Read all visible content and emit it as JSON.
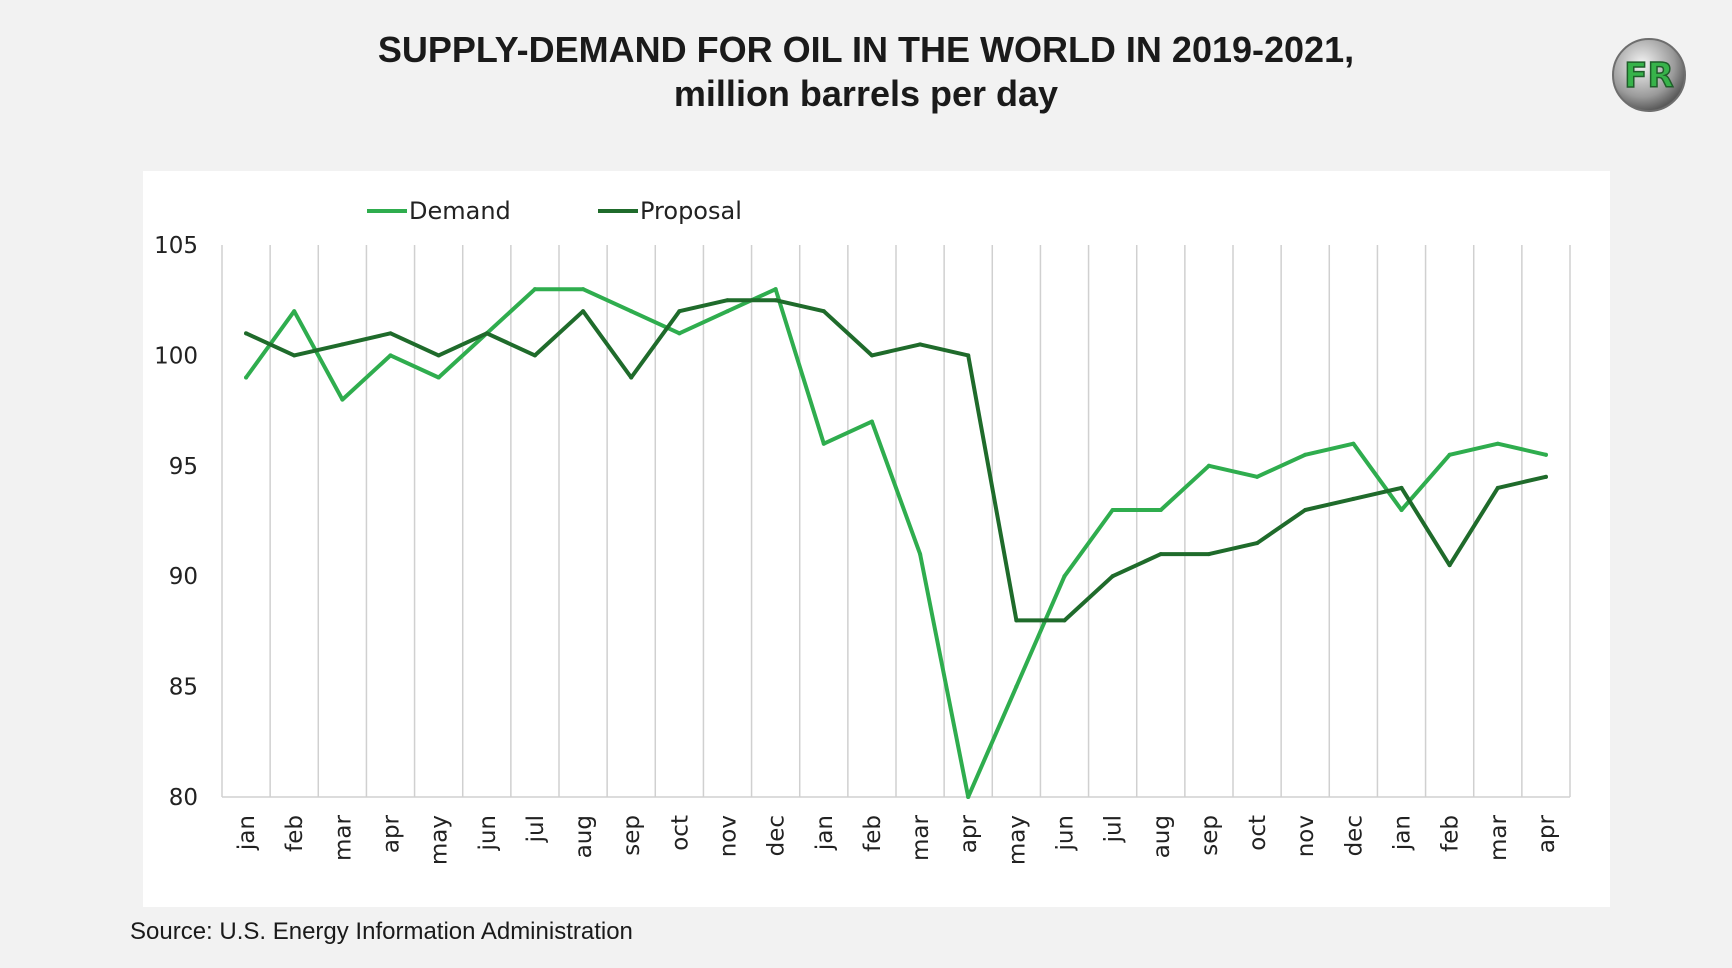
{
  "title": {
    "line1": "SUPPLY-DEMAND FOR OIL IN THE WORLD IN 2019-2021,",
    "line2": "million barrels per day"
  },
  "source": "Source: U.S. Energy Information Administration",
  "logo": {
    "letters": "FR",
    "icon": "fr-logo-icon"
  },
  "colors": {
    "background": "#f2f2f2",
    "panel": "#ffffff",
    "demand": "#2fad4e",
    "proposal": "#1f6b2b",
    "grid": "#d0d0d0",
    "text": "#222222"
  },
  "chart_data": {
    "type": "line",
    "title": "SUPPLY-DEMAND FOR OIL IN THE WORLD IN 2019-2021, million barrels per day",
    "xlabel": "",
    "ylabel": "",
    "ylim": [
      80,
      105
    ],
    "yticks": [
      80,
      85,
      90,
      95,
      100,
      105
    ],
    "grid": "vertical",
    "legend_position": "top-left",
    "categories": [
      "jan",
      "feb",
      "mar",
      "apr",
      "may",
      "jun",
      "jul",
      "aug",
      "sep",
      "oct",
      "nov",
      "dec",
      "jan",
      "feb",
      "mar",
      "apr",
      "may",
      "jun",
      "jul",
      "aug",
      "sep",
      "oct",
      "nov",
      "dec",
      "jan",
      "feb",
      "mar",
      "apr"
    ],
    "series": [
      {
        "name": "Demand",
        "color": "#2fad4e",
        "values": [
          99,
          102,
          98,
          100,
          99,
          101,
          103,
          103,
          102,
          101,
          102,
          103,
          96,
          97,
          91,
          80,
          85,
          90,
          93,
          93,
          95,
          94.5,
          95.5,
          96,
          93,
          95.5,
          96,
          95.5
        ]
      },
      {
        "name": "Proposal",
        "color": "#1f6b2b",
        "values": [
          101,
          100,
          100.5,
          101,
          100,
          101,
          100,
          102,
          99,
          102,
          102.5,
          102.5,
          102,
          100,
          100.5,
          100,
          88,
          88,
          90,
          91,
          91,
          91.5,
          93,
          93.5,
          94,
          90.5,
          94,
          94.5
        ]
      }
    ]
  }
}
